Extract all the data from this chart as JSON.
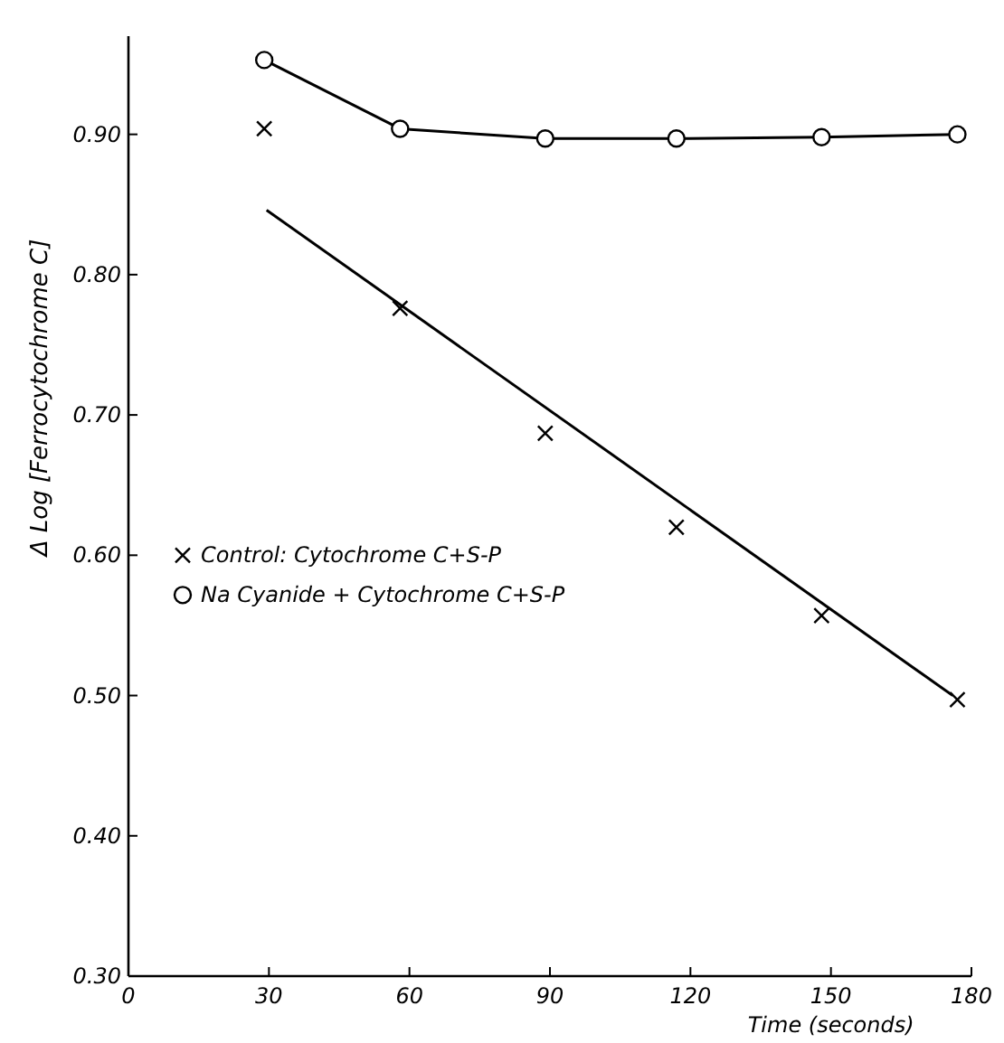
{
  "chart_data": {
    "type": "line",
    "xlabel": "Time (seconds)",
    "ylabel": "Δ Log [Ferrocytochrome C]",
    "xlim": [
      0,
      180
    ],
    "ylim": [
      0.3,
      0.97
    ],
    "xticks": [
      0,
      30,
      60,
      90,
      120,
      150,
      180
    ],
    "yticks": [
      {
        "value": 0.3,
        "label": "0.30"
      },
      {
        "value": 0.4,
        "label": "0.40"
      },
      {
        "value": 0.5,
        "label": "0.50"
      },
      {
        "value": 0.6,
        "label": "0.60"
      },
      {
        "value": 0.7,
        "label": "0.70"
      },
      {
        "value": 0.8,
        "label": "0.80"
      },
      {
        "value": 0.9,
        "label": "0.90"
      }
    ],
    "grid": false,
    "legend": "left",
    "series": [
      {
        "name": "Control: Cytochrome C+S-P",
        "type": "scatter",
        "marker": "cross",
        "color": "#000000",
        "x": [
          29,
          58,
          89,
          117,
          148,
          177
        ],
        "values": [
          0.904,
          0.776,
          0.687,
          0.62,
          0.557,
          0.497
        ]
      },
      {
        "name": "Na Cyanide + Cytochrome C+S-P",
        "type": "line",
        "marker": "circle",
        "color": "#000000",
        "x": [
          29,
          58,
          89,
          117,
          148,
          177
        ],
        "values": [
          0.953,
          0.904,
          0.897,
          0.897,
          0.898,
          0.9
        ]
      },
      {
        "type": "line",
        "marker": "none",
        "color": "#000000",
        "x": [
          29.5,
          176
        ],
        "values": [
          0.846,
          0.5
        ]
      }
    ]
  }
}
